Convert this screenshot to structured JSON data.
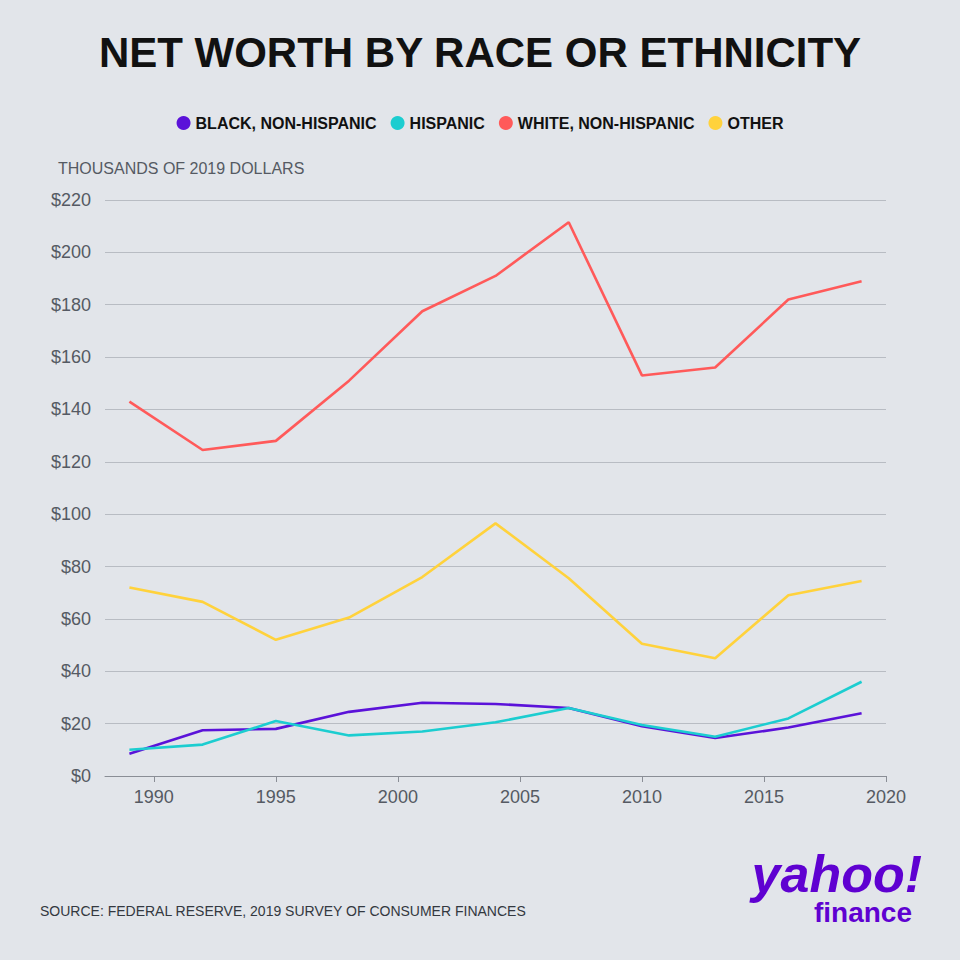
{
  "chart_data": {
    "type": "line",
    "title": "NET WORTH BY RACE OR ETHNICITY",
    "y_label": "THOUSANDS OF 2019 DOLLARS",
    "source": "SOURCE: FEDERAL RESERVE, 2019 SURVEY OF CONSUMER FINANCES",
    "logo": [
      "yahoo!",
      "finance"
    ],
    "x": [
      1989,
      1992,
      1995,
      1998,
      2001,
      2004,
      2007,
      2010,
      2013,
      2016,
      2019
    ],
    "series": [
      {
        "name": "BLACK, NON-HISPANIC",
        "color": "#5b12d9",
        "values": [
          8.5,
          17.5,
          18,
          24.5,
          28,
          27.5,
          26,
          19,
          14.5,
          18.5,
          24
        ]
      },
      {
        "name": "HISPANIC",
        "color": "#1ccdd0",
        "values": [
          10,
          12,
          21,
          15.5,
          17,
          20.5,
          26,
          19.5,
          15,
          22,
          36
        ]
      },
      {
        "name": "WHITE, NON-HISPANIC",
        "color": "#ff5a5a",
        "values": [
          143,
          124.5,
          128,
          151,
          177.5,
          191,
          211.5,
          153,
          156,
          182,
          189
        ]
      },
      {
        "name": "OTHER",
        "color": "#ffd23c",
        "values": [
          72,
          66.5,
          52,
          60.5,
          76,
          96.5,
          75.5,
          50.5,
          45,
          69,
          74.5
        ]
      }
    ],
    "xlim": [
      1988,
      2020
    ],
    "xticks": [
      1990,
      1995,
      2000,
      2005,
      2010,
      2015,
      2020
    ],
    "ylim": [
      0,
      220
    ],
    "yticks": [
      {
        "value": 0,
        "label": "$0"
      },
      {
        "value": 20,
        "label": "$20"
      },
      {
        "value": 40,
        "label": "$40"
      },
      {
        "value": 60,
        "label": "$60"
      },
      {
        "value": 80,
        "label": "$80"
      },
      {
        "value": 100,
        "label": "$100"
      },
      {
        "value": 120,
        "label": "$120"
      },
      {
        "value": 140,
        "label": "$140"
      },
      {
        "value": 160,
        "label": "$160"
      },
      {
        "value": 180,
        "label": "$180"
      },
      {
        "value": 200,
        "label": "$200"
      },
      {
        "value": 220,
        "label": "$220"
      }
    ],
    "grid": true,
    "legend": "top"
  }
}
